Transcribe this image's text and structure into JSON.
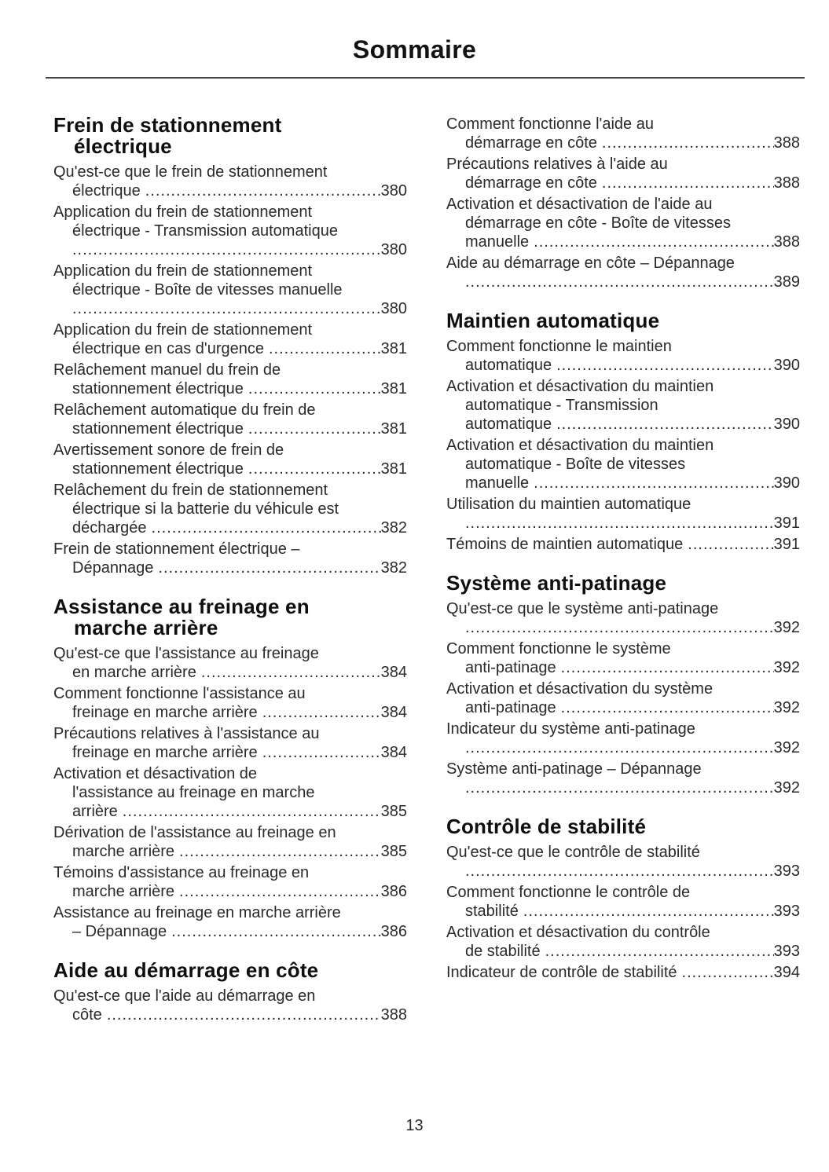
{
  "page": {
    "title": "Sommaire",
    "footer_page_number": "13"
  },
  "text_color": "#2a2a2a",
  "heading_color": "#0f0f0f",
  "columns": [
    {
      "sections": [
        {
          "heading_lines": [
            "Frein de stationnement",
            "électrique"
          ],
          "entries": [
            {
              "lines": [
                "Qu'est-ce que le frein de stationnement"
              ],
              "last": "électrique",
              "page": "380"
            },
            {
              "lines": [
                "Application du frein de stationnement",
                "électrique - Transmission automatique"
              ],
              "last": "",
              "page": "380"
            },
            {
              "lines": [
                "Application du frein de stationnement",
                "électrique - Boîte de vitesses manuelle"
              ],
              "last": "",
              "page": "380"
            },
            {
              "lines": [
                "Application du frein de stationnement"
              ],
              "last": "électrique en cas d'urgence",
              "page": "381"
            },
            {
              "lines": [
                "Relâchement manuel du frein de"
              ],
              "last": "stationnement électrique",
              "page": "381"
            },
            {
              "lines": [
                "Relâchement automatique du frein de"
              ],
              "last": "stationnement électrique",
              "page": "381"
            },
            {
              "lines": [
                "Avertissement sonore de frein de"
              ],
              "last": "stationnement électrique",
              "page": "381"
            },
            {
              "lines": [
                "Relâchement du frein de stationnement",
                "électrique si la batterie du véhicule est"
              ],
              "last": "déchargée",
              "page": "382"
            },
            {
              "lines": [
                "Frein de stationnement électrique –"
              ],
              "last": "Dépannage",
              "page": "382"
            }
          ]
        },
        {
          "heading_lines": [
            "Assistance au freinage en",
            "marche arrière"
          ],
          "entries": [
            {
              "lines": [
                "Qu'est-ce que l'assistance au freinage"
              ],
              "last": "en marche arrière",
              "page": "384"
            },
            {
              "lines": [
                "Comment fonctionne l'assistance au"
              ],
              "last": "freinage en marche arrière",
              "page": "384"
            },
            {
              "lines": [
                "Précautions relatives à l'assistance au"
              ],
              "last": "freinage en marche arrière",
              "page": "384"
            },
            {
              "lines": [
                "Activation et désactivation de",
                "l'assistance au freinage en marche"
              ],
              "last": "arrière",
              "page": "385"
            },
            {
              "lines": [
                "Dérivation de l'assistance au freinage en"
              ],
              "last": "marche arrière",
              "page": "385"
            },
            {
              "lines": [
                "Témoins d'assistance au freinage en"
              ],
              "last": "marche arrière",
              "page": "386"
            },
            {
              "lines": [
                "Assistance au freinage en marche arrière"
              ],
              "last": "– Dépannage",
              "page": "386"
            }
          ]
        },
        {
          "heading_lines": [
            "Aide au démarrage en côte"
          ],
          "entries": [
            {
              "lines": [
                "Qu'est-ce que l'aide au démarrage en"
              ],
              "last": "côte",
              "page": "388"
            }
          ]
        }
      ]
    },
    {
      "sections": [
        {
          "heading_lines": [],
          "entries": [
            {
              "lines": [
                "Comment fonctionne l'aide au"
              ],
              "last": "démarrage en côte",
              "page": "388"
            },
            {
              "lines": [
                "Précautions relatives à l'aide au"
              ],
              "last": "démarrage en côte",
              "page": "388"
            },
            {
              "lines": [
                "Activation et désactivation de l'aide au",
                "démarrage en côte - Boîte de vitesses"
              ],
              "last": "manuelle",
              "page": "388"
            },
            {
              "lines": [
                "Aide au démarrage en côte – Dépannage"
              ],
              "last": "",
              "page": "389"
            }
          ]
        },
        {
          "heading_lines": [
            "Maintien automatique"
          ],
          "entries": [
            {
              "lines": [
                "Comment fonctionne le maintien"
              ],
              "last": "automatique",
              "page": "390"
            },
            {
              "lines": [
                "Activation et désactivation du maintien",
                "automatique - Transmission"
              ],
              "last": "automatique",
              "page": "390"
            },
            {
              "lines": [
                "Activation et désactivation du maintien",
                "automatique - Boîte de vitesses"
              ],
              "last": "manuelle",
              "page": "390"
            },
            {
              "lines": [
                "Utilisation du maintien automatique"
              ],
              "last": "",
              "page": "391"
            },
            {
              "lines": [],
              "last": "Témoins de maintien automatique",
              "page": "391"
            }
          ]
        },
        {
          "heading_lines": [
            "Système anti-patinage"
          ],
          "entries": [
            {
              "lines": [
                "Qu'est-ce que le système anti-patinage"
              ],
              "last": "",
              "page": "392"
            },
            {
              "lines": [
                "Comment fonctionne le système"
              ],
              "last": "anti-patinage",
              "page": "392"
            },
            {
              "lines": [
                "Activation et désactivation du système"
              ],
              "last": "anti-patinage",
              "page": "392"
            },
            {
              "lines": [
                "Indicateur du système anti-patinage"
              ],
              "last": "",
              "page": "392"
            },
            {
              "lines": [
                "Système anti-patinage – Dépannage"
              ],
              "last": "",
              "page": "392"
            }
          ]
        },
        {
          "heading_lines": [
            "Contrôle de stabilité"
          ],
          "entries": [
            {
              "lines": [
                "Qu'est-ce que le contrôle de stabilité"
              ],
              "last": "",
              "page": "393"
            },
            {
              "lines": [
                "Comment fonctionne le contrôle de"
              ],
              "last": "stabilité",
              "page": "393"
            },
            {
              "lines": [
                "Activation et désactivation du contrôle"
              ],
              "last": "de stabilité",
              "page": "393"
            },
            {
              "lines": [],
              "last": "Indicateur de contrôle de stabilité",
              "page": "394"
            }
          ]
        }
      ]
    }
  ]
}
